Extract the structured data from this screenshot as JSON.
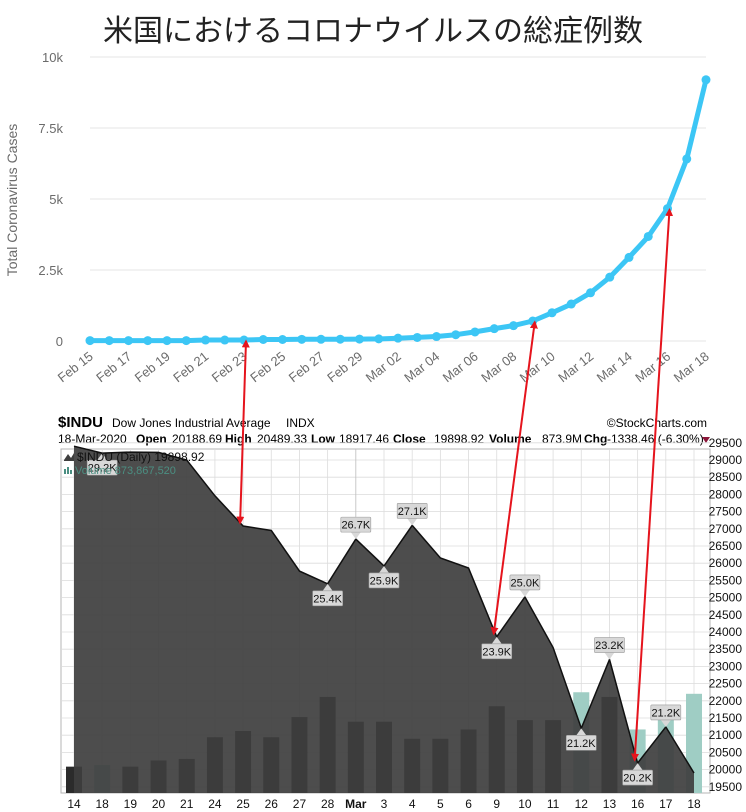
{
  "title": "米国におけるコロナウイルスの総症例数",
  "colors": {
    "covid_line": "#3cc6f5",
    "covid_grid": "#e4e4e4",
    "covid_label": "#6b6b6b",
    "stock_bg": "#ffffff",
    "stock_area": "#3e3e3e",
    "stock_area_top": "#4a4a4a",
    "volume_dark": "#2b2b2b",
    "volume_light": "#9fcdc4",
    "arrow": "#e5141d",
    "stock_grid": "#dcdcdc",
    "volume_text": "#4b8f82",
    "chg_marker": "#8a1538"
  },
  "chart_data": [
    {
      "type": "line",
      "title": "米国におけるコロナウイルスの総症例数",
      "ylabel": "Total Coronavirus Cases",
      "xlabel": "",
      "ylim": [
        0,
        10000
      ],
      "yticks": [
        0,
        2500,
        5000,
        7500,
        10000
      ],
      "ytick_labels": [
        "0",
        "2.5k",
        "5k",
        "7.5k",
        "10k"
      ],
      "grid": true,
      "x": [
        "Feb 15",
        "Feb 16",
        "Feb 17",
        "Feb 18",
        "Feb 19",
        "Feb 20",
        "Feb 21",
        "Feb 22",
        "Feb 23",
        "Feb 24",
        "Feb 25",
        "Feb 26",
        "Feb 27",
        "Feb 28",
        "Feb 29",
        "Mar 01",
        "Mar 02",
        "Mar 03",
        "Mar 04",
        "Mar 05",
        "Mar 06",
        "Mar 07",
        "Mar 08",
        "Mar 09",
        "Mar 10",
        "Mar 11",
        "Mar 12",
        "Mar 13",
        "Mar 14",
        "Mar 15",
        "Mar 16",
        "Mar 17",
        "Mar 18"
      ],
      "xtick_labels": [
        "Feb 15",
        "Feb 17",
        "Feb 19",
        "Feb 21",
        "Feb 23",
        "Feb 25",
        "Feb 27",
        "Feb 29",
        "Mar 02",
        "Mar 04",
        "Mar 06",
        "Mar 08",
        "Mar 10",
        "Mar 12",
        "Mar 14",
        "Mar 16",
        "Mar 18"
      ],
      "series": [
        {
          "values": [
            15,
            15,
            15,
            15,
            15,
            15,
            35,
            35,
            35,
            53,
            53,
            59,
            60,
            62,
            68,
            75,
            100,
            125,
            158,
            221,
            319,
            435,
            541,
            704,
            994,
            1301,
            1697,
            2247,
            2943,
            3680,
            4663,
            6411,
            9197
          ]
        }
      ]
    },
    {
      "type": "area",
      "source": "©StockCharts.com",
      "symbol": "$INDU",
      "name": "Dow Jones Industrial Average",
      "exchange": "INDX",
      "date": "18-Mar-2020",
      "open_label": "Open",
      "open": "20188.69",
      "high_label": "High",
      "high": "20489.33",
      "low_label": "Low",
      "low": "18917.46",
      "close_label": "Close",
      "close": "19898.92",
      "volume_label": "Volume",
      "volume": "873.9M",
      "chg_label": "Chg",
      "chg": "-1338.46 (-6.30%)",
      "legend_price": "$INDU (Daily) 19898.92",
      "legend_volume": "Volume 873,867,520",
      "ylim": [
        19250,
        29900
      ],
      "yticks": [
        19500,
        20000,
        20500,
        21000,
        21500,
        22000,
        22500,
        23000,
        23500,
        24000,
        24500,
        25000,
        25500,
        26000,
        26500,
        27000,
        27500,
        28000,
        28500,
        29000,
        29500
      ],
      "categories": [
        "14",
        "18",
        "19",
        "20",
        "21",
        "24",
        "25",
        "26",
        "27",
        "28",
        "Mar",
        "3",
        "4",
        "5",
        "6",
        "9",
        "10",
        "11",
        "12",
        "13",
        "16",
        "17",
        "18"
      ],
      "values": [
        29400,
        29200,
        29230,
        29220,
        29000,
        27960,
        27080,
        26950,
        25770,
        25400,
        26700,
        25920,
        27100,
        26150,
        25860,
        23860,
        25020,
        23550,
        21200,
        23200,
        20190,
        21240,
        19900
      ],
      "volume_relative": [
        0.17,
        0.18,
        0.17,
        0.21,
        0.22,
        0.36,
        0.4,
        0.36,
        0.49,
        0.62,
        0.46,
        0.46,
        0.35,
        0.35,
        0.41,
        0.56,
        0.47,
        0.47,
        0.65,
        0.62,
        0.41,
        0.51,
        0.64
      ],
      "volume_light_bars": [
        "12",
        "16",
        "17",
        "18"
      ],
      "annotations": [
        {
          "at": "18",
          "label": "29.2K"
        },
        {
          "at": "28",
          "label": "25.4K"
        },
        {
          "at": "Mar",
          "label": "26.7K"
        },
        {
          "at": "3",
          "label": "25.9K"
        },
        {
          "at": "4",
          "label": "27.1K"
        },
        {
          "at": "9",
          "label": "23.9K"
        },
        {
          "at": "10",
          "label": "25.0K"
        },
        {
          "at": "12",
          "label": "21.2K"
        },
        {
          "at": "13",
          "label": "23.2K"
        },
        {
          "at": "16",
          "label": "20.2K"
        },
        {
          "at": "17",
          "label": "21.2K"
        }
      ]
    }
  ],
  "arrows": [
    {
      "from": "Feb 23",
      "to": "25"
    },
    {
      "from": "Mar 09",
      "to": "9"
    },
    {
      "from": "Mar 16",
      "to": "16"
    }
  ]
}
